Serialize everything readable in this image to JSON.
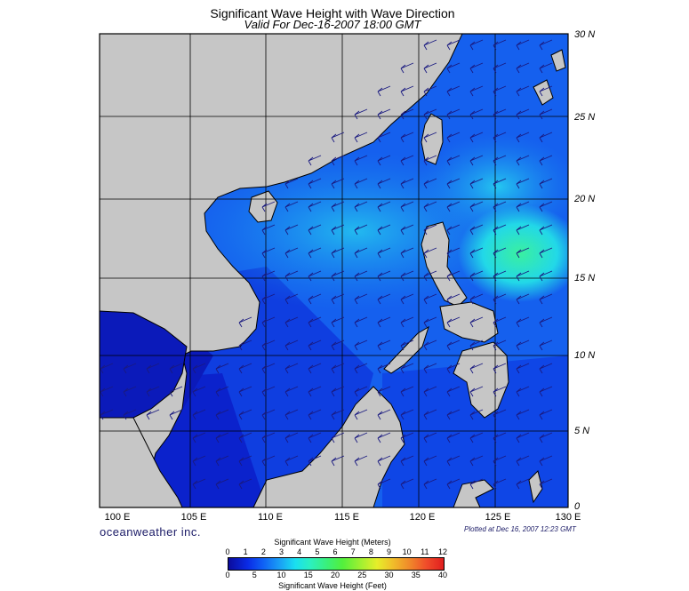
{
  "title": "Significant Wave Height with Wave Direction",
  "subtitle": "Valid For Dec-16-2007 18:00 GMT",
  "lat_labels": [
    "30 N",
    "25 N",
    "20 N",
    "15 N",
    "10 N",
    "5 N",
    "0"
  ],
  "lon_labels": [
    "100 E",
    "105 E",
    "110 E",
    "115 E",
    "120 E",
    "125 E",
    "130 E"
  ],
  "brand": "oceanweather inc.",
  "plotted": "Plotted at Dec 16, 2007 12:23 GMT",
  "legend": {
    "meters_title": "Significant Wave Height (Meters)",
    "meters_ticks": [
      "0",
      "1",
      "2",
      "3",
      "4",
      "5",
      "6",
      "7",
      "8",
      "9",
      "10",
      "11",
      "12"
    ],
    "feet_title": "Significant Wave Height (Feet)",
    "feet_ticks": [
      "0",
      "5",
      "10",
      "15",
      "20",
      "25",
      "30",
      "35",
      "40"
    ]
  },
  "colors": {
    "land": "#c6c6c6",
    "low_wave": "#0b14c8",
    "mid_wave": "#1a7cf0",
    "high_wave": "#2af0c8",
    "arrow": "#1a1a80"
  }
}
